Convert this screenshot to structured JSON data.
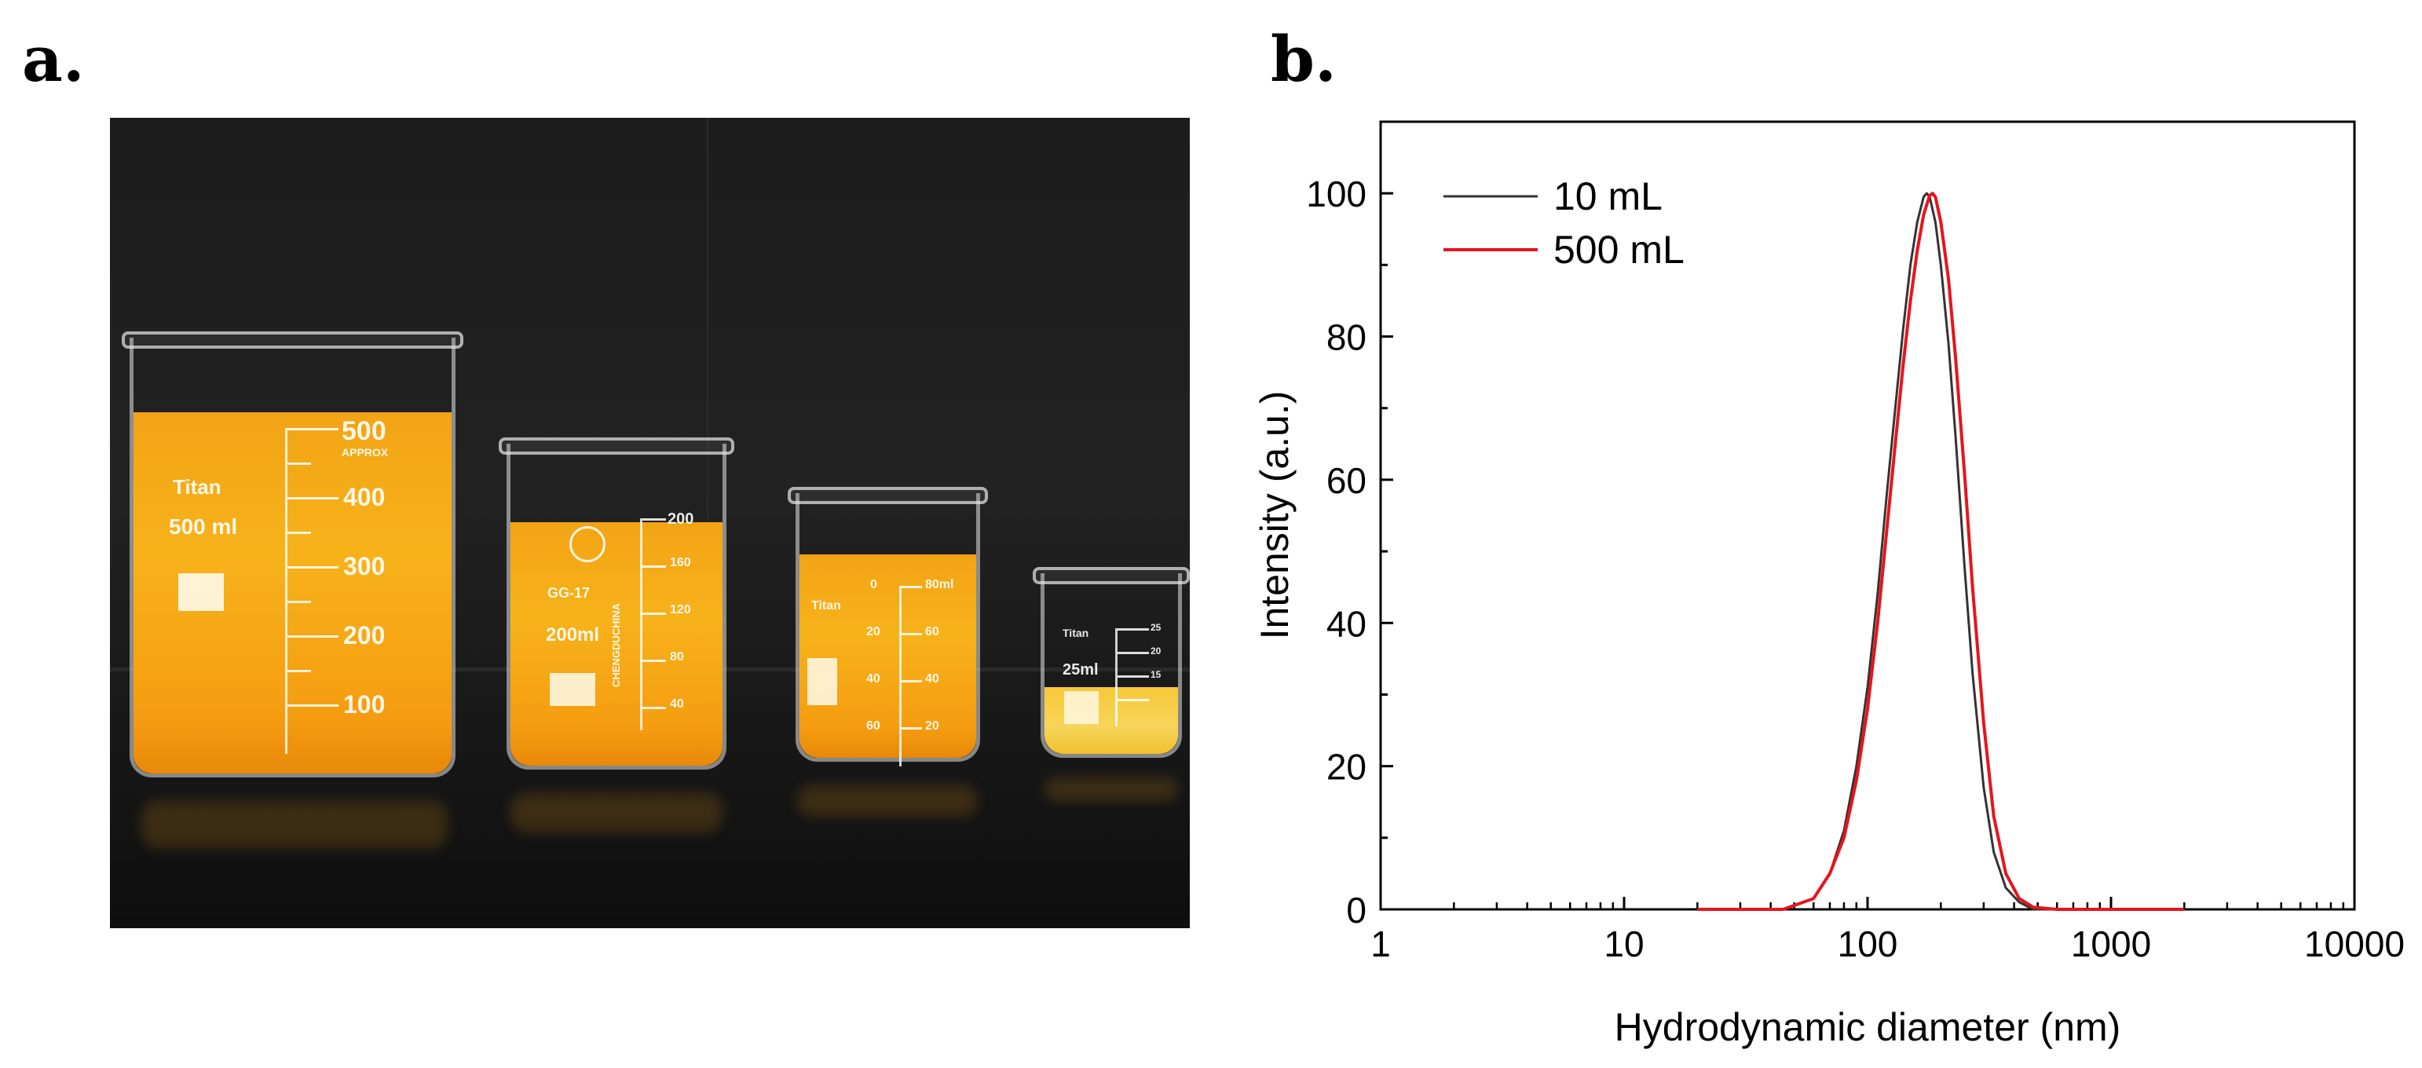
{
  "panels": {
    "a_label": "a.",
    "b_label": "b."
  },
  "photo": {
    "beakers": [
      {
        "brand": "Titan",
        "volume": "500 ml",
        "scale_top": "500",
        "approx": "APPROX",
        "marks": [
          "400",
          "300",
          "200",
          "100"
        ]
      },
      {
        "brand": "GG-17",
        "volume": "200ml",
        "scale_top": "200",
        "maker": "CHENGDUCHINA",
        "marks": [
          "160",
          "120",
          "80",
          "40"
        ]
      },
      {
        "brand": "Titan",
        "volume": "",
        "left_marks": [
          "0",
          "20",
          "40",
          "60"
        ],
        "marks": [
          "80ml",
          "60",
          "40",
          "20"
        ]
      },
      {
        "brand": "Titan",
        "volume": "25ml",
        "marks": [
          "25",
          "20",
          "15"
        ]
      }
    ],
    "liquid_colors": {
      "deep": "#f5a316",
      "light": "#f6cd45"
    }
  },
  "chart_data": {
    "type": "line",
    "xlabel": "Hydrodynamic diameter (nm)",
    "ylabel": "Intensity (a.u.)",
    "xscale": "log",
    "xlim": [
      1,
      10000
    ],
    "ylim": [
      0,
      110
    ],
    "xticks": [
      1,
      10,
      100,
      1000,
      10000
    ],
    "xtick_labels": [
      "1",
      "10",
      "100",
      "1000",
      "10000"
    ],
    "yticks": [
      0,
      20,
      40,
      60,
      80,
      100
    ],
    "ytick_labels": [
      "0",
      "20",
      "40",
      "60",
      "80",
      "100"
    ],
    "legend_position": "top-left",
    "grid": false,
    "series": [
      {
        "name": "10 mL",
        "color": "#333333",
        "x": [
          20,
          45,
          60,
          70,
          80,
          90,
          100,
          110,
          120,
          130,
          140,
          150,
          160,
          170,
          175,
          180,
          190,
          200,
          215,
          230,
          250,
          270,
          300,
          330,
          370,
          420,
          480,
          600,
          1000,
          2000
        ],
        "y": [
          0,
          0,
          1.5,
          5,
          11,
          20,
          31,
          44,
          58,
          70,
          81,
          90,
          96,
          99.5,
          100,
          99.5,
          96,
          90,
          79,
          66,
          48,
          33,
          17,
          8,
          3,
          1,
          0,
          0,
          0,
          0
        ]
      },
      {
        "name": "500 mL",
        "color": "#e8141b",
        "x": [
          20,
          45,
          60,
          70,
          80,
          90,
          100,
          110,
          120,
          130,
          140,
          150,
          160,
          170,
          180,
          185,
          190,
          200,
          215,
          230,
          250,
          270,
          300,
          330,
          370,
          420,
          480,
          600,
          1000,
          2000
        ],
        "y": [
          0,
          0,
          1.5,
          5,
          10,
          18,
          28,
          40,
          53,
          65,
          76,
          85,
          92,
          97,
          99.7,
          100,
          99.5,
          96,
          88,
          77,
          61,
          45,
          26,
          13,
          5,
          1.5,
          0.3,
          0,
          0,
          0
        ]
      }
    ]
  }
}
